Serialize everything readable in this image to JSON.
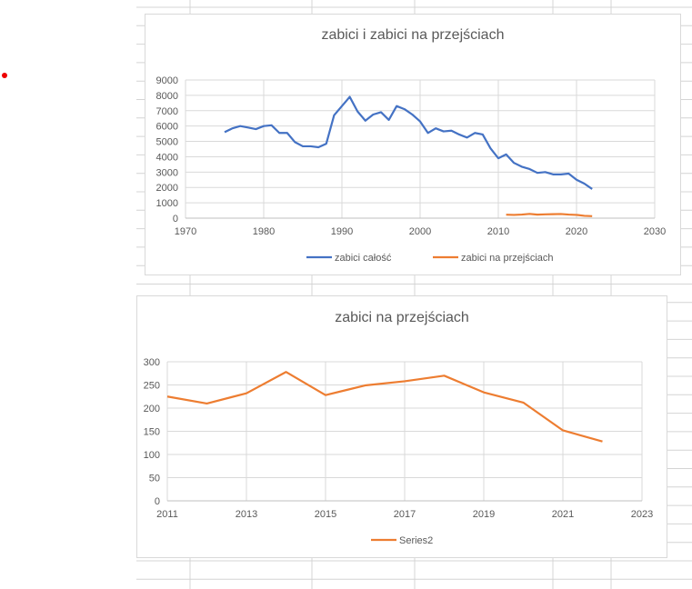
{
  "chart_data": [
    {
      "type": "line",
      "title": "zabici i zabici na przejściach",
      "xlabel": "",
      "ylabel": "",
      "xlim": [
        1970,
        2030
      ],
      "ylim": [
        0,
        9000
      ],
      "xticks": [
        1970,
        1980,
        1990,
        2000,
        2010,
        2020,
        2030
      ],
      "yticks": [
        0,
        1000,
        2000,
        3000,
        4000,
        5000,
        6000,
        7000,
        8000,
        9000
      ],
      "grid": true,
      "legend": "bottom",
      "series": [
        {
          "name": "zabici całość",
          "color": "#4472c4",
          "x": [
            1975,
            1976,
            1977,
            1978,
            1979,
            1980,
            1981,
            1982,
            1983,
            1984,
            1985,
            1986,
            1987,
            1988,
            1989,
            1990,
            1991,
            1992,
            1993,
            1994,
            1995,
            1996,
            1997,
            1998,
            1999,
            2000,
            2001,
            2002,
            2003,
            2004,
            2005,
            2006,
            2007,
            2008,
            2009,
            2010,
            2011,
            2012,
            2013,
            2014,
            2015,
            2016,
            2017,
            2018,
            2019,
            2020,
            2021,
            2022
          ],
          "y": [
            5600,
            5850,
            6000,
            5900,
            5800,
            6000,
            6050,
            5550,
            5550,
            4950,
            4680,
            4680,
            4620,
            4850,
            6700,
            7300,
            7900,
            6950,
            6350,
            6750,
            6900,
            6400,
            7300,
            7100,
            6750,
            6300,
            5550,
            5850,
            5650,
            5700,
            5450,
            5250,
            5550,
            5450,
            4550,
            3900,
            4150,
            3600,
            3350,
            3200,
            2950,
            3000,
            2850,
            2850,
            2900,
            2500,
            2250,
            1900
          ]
        },
        {
          "name": "zabici na przejściach",
          "color": "#ed7d31",
          "x": [
            2011,
            2012,
            2013,
            2014,
            2015,
            2016,
            2017,
            2018,
            2019,
            2020,
            2021,
            2022
          ],
          "y": [
            225,
            210,
            232,
            278,
            228,
            249,
            258,
            270,
            234,
            212,
            152,
            128
          ]
        }
      ]
    },
    {
      "type": "line",
      "title": "zabici na przejściach",
      "xlabel": "",
      "ylabel": "",
      "xlim": [
        2011,
        2023
      ],
      "ylim": [
        0,
        300
      ],
      "xticks": [
        2011,
        2013,
        2015,
        2017,
        2019,
        2021,
        2023
      ],
      "yticks": [
        0,
        50,
        100,
        150,
        200,
        250,
        300
      ],
      "grid": true,
      "legend": "bottom",
      "series": [
        {
          "name": "Series2",
          "color": "#ed7d31",
          "x": [
            2011,
            2012,
            2013,
            2014,
            2015,
            2016,
            2017,
            2018,
            2019,
            2020,
            2021,
            2022
          ],
          "y": [
            225,
            210,
            232,
            278,
            228,
            249,
            258,
            270,
            234,
            212,
            152,
            128
          ]
        }
      ]
    }
  ]
}
